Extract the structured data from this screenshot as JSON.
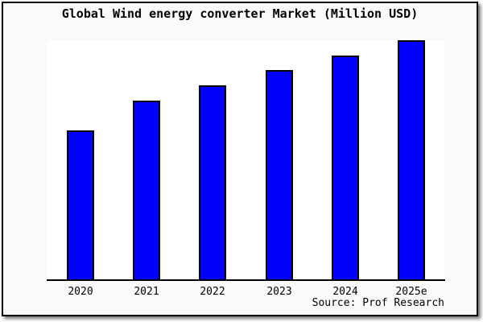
{
  "figure": {
    "title": "Global Wind energy converter Market (Million USD)",
    "source": "Source: Prof Research"
  },
  "colors": {
    "bar_fill": "#0000fe",
    "bar_border": "#000000",
    "figure_background": "#fafafa",
    "plot_background": "#ffffff",
    "frame_border": "#000000",
    "text": "#000000"
  },
  "chart_data": {
    "type": "bar",
    "title": "Global Wind energy converter Market (Million USD)",
    "categories": [
      "2020",
      "2021",
      "2022",
      "2023",
      "2024",
      "2025e"
    ],
    "values": [
      50,
      60,
      65,
      70,
      75,
      80
    ],
    "values_note": "y-axis has no ticks or labels; values estimated from relative bar heights (tallest bar 2025e touches plot top)",
    "xlabel": "",
    "ylabel": "",
    "ylim": [
      0,
      80
    ],
    "grid": false,
    "legend": null,
    "y_axis_visible": false,
    "source": "Source: Prof Research",
    "bar_color": "#0000fe"
  }
}
